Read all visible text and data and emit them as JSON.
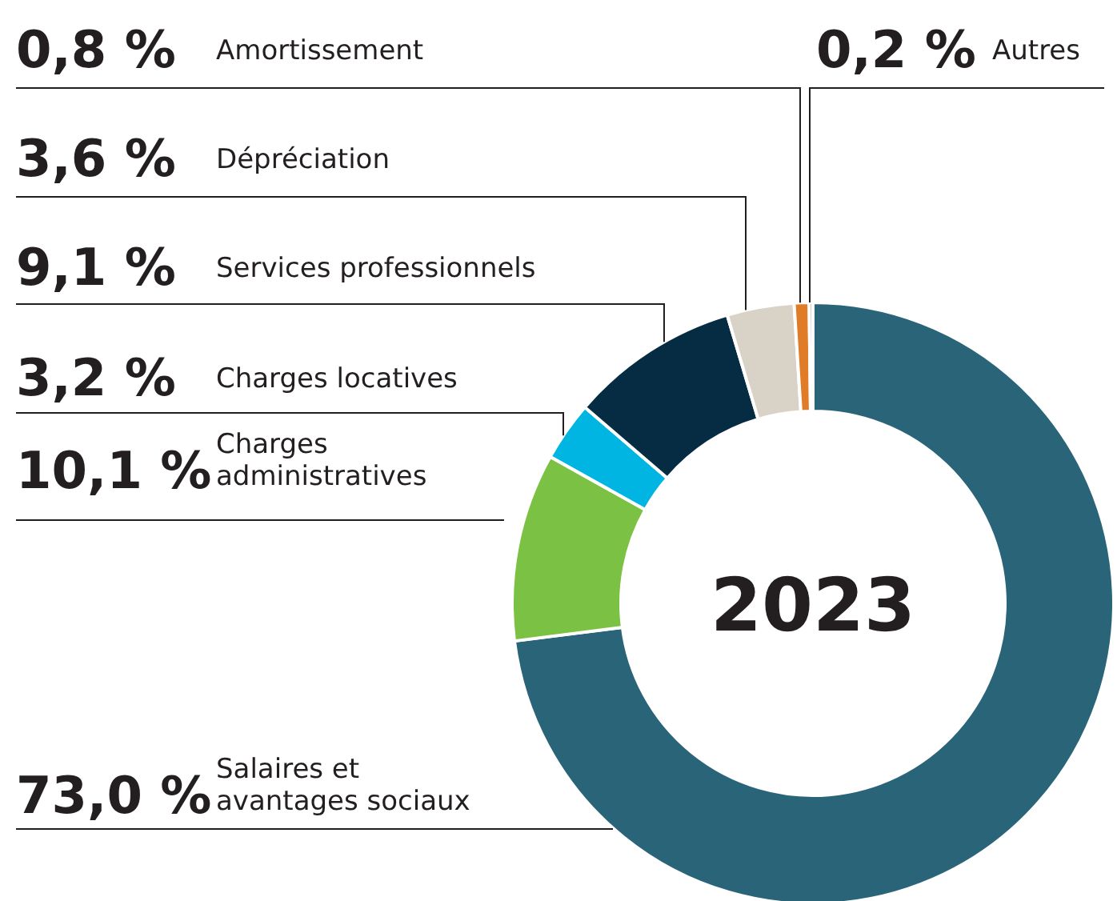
{
  "chart_data": {
    "type": "donut",
    "title": "2023",
    "categories": [
      "Salaires et avantages sociaux",
      "Charges administratives",
      "Charges locatives",
      "Services professionnels",
      "Dépréciation",
      "Amortissement",
      "Autres"
    ],
    "values": [
      73.0,
      10.1,
      3.2,
      9.1,
      3.6,
      0.8,
      0.2
    ],
    "value_labels": [
      "73,0 %",
      "10,1 %",
      "3,2 %",
      "9,1 %",
      "3,6 %",
      "0,8 %",
      "0,2 %"
    ],
    "colors": [
      "#2a6478",
      "#7bc143",
      "#00b5e2",
      "#062c43",
      "#d9d3c7",
      "#e07b28",
      "#b0b0b0"
    ]
  }
}
